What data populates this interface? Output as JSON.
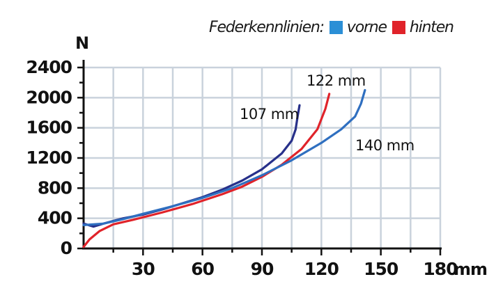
{
  "legend": {
    "title": "Federkennlinien:",
    "items": [
      {
        "label": "vorne",
        "color": "#2b8fd6"
      },
      {
        "label": "hinten",
        "color": "#e0232a"
      }
    ]
  },
  "colors": {
    "grid": "#c9d2dc",
    "axis": "#111111",
    "navy": "#27308a",
    "blue": "#2f6fc0",
    "red": "#e0232a"
  },
  "chart_data": {
    "type": "line",
    "ylabel": "N",
    "xunit": "mm",
    "xlim": [
      0,
      180
    ],
    "ylim": [
      0,
      2400
    ],
    "xticks": [
      "30",
      "60",
      "90",
      "120",
      "150",
      "180"
    ],
    "yticks": [
      "0",
      "400",
      "800",
      "1200",
      "1600",
      "2000",
      "2400"
    ],
    "grid": true,
    "series": [
      {
        "name": "107 mm",
        "color": "#27308a",
        "points": [
          [
            0,
            330
          ],
          [
            5,
            290
          ],
          [
            10,
            330
          ],
          [
            20,
            400
          ],
          [
            30,
            450
          ],
          [
            40,
            520
          ],
          [
            50,
            600
          ],
          [
            60,
            680
          ],
          [
            70,
            780
          ],
          [
            80,
            900
          ],
          [
            90,
            1050
          ],
          [
            100,
            1260
          ],
          [
            105,
            1430
          ],
          [
            107,
            1580
          ],
          [
            108,
            1750
          ],
          [
            109,
            1900
          ]
        ]
      },
      {
        "name": "122 mm",
        "color": "#e0232a",
        "points": [
          [
            0,
            20
          ],
          [
            3,
            120
          ],
          [
            8,
            230
          ],
          [
            15,
            320
          ],
          [
            25,
            380
          ],
          [
            40,
            480
          ],
          [
            55,
            590
          ],
          [
            70,
            720
          ],
          [
            80,
            820
          ],
          [
            90,
            950
          ],
          [
            100,
            1110
          ],
          [
            110,
            1320
          ],
          [
            118,
            1580
          ],
          [
            122,
            1850
          ],
          [
            124,
            2050
          ]
        ]
      },
      {
        "name": "140 mm",
        "color": "#2f6fc0",
        "points": [
          [
            0,
            310
          ],
          [
            10,
            330
          ],
          [
            20,
            390
          ],
          [
            30,
            460
          ],
          [
            45,
            560
          ],
          [
            60,
            670
          ],
          [
            75,
            800
          ],
          [
            90,
            970
          ],
          [
            105,
            1170
          ],
          [
            120,
            1400
          ],
          [
            130,
            1580
          ],
          [
            137,
            1750
          ],
          [
            140,
            1920
          ],
          [
            142,
            2100
          ]
        ]
      }
    ]
  }
}
